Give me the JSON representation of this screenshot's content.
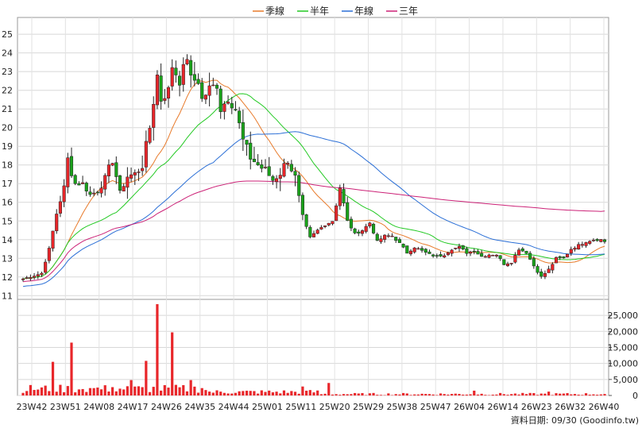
{
  "chart_data": {
    "type": "candlestick",
    "legend": [
      {
        "name": "季線",
        "color": "#e87a2a"
      },
      {
        "name": "半年",
        "color": "#22c922"
      },
      {
        "name": "年線",
        "color": "#2b6fd6"
      },
      {
        "name": "三年",
        "color": "#cc2277"
      }
    ],
    "price_axis": {
      "min": 10.8,
      "max": 25.9,
      "ticks": [
        11,
        12,
        13,
        14,
        15,
        16,
        17,
        18,
        19,
        20,
        21,
        22,
        23,
        24,
        25
      ]
    },
    "volume_axis": {
      "min": 0,
      "max": 29000,
      "ticks": [
        "0",
        "5,000",
        "10,000",
        "15,000",
        "20,000",
        "25,000"
      ],
      "tick_values": [
        0,
        5000,
        10000,
        15000,
        20000,
        25000
      ]
    },
    "x_labels": [
      "23W42",
      "23W51",
      "24W08",
      "24W17",
      "24W26",
      "24W35",
      "24W44",
      "25W01",
      "25W11",
      "25W20",
      "25W29",
      "25W38",
      "25W47",
      "26W04",
      "26W14",
      "26W23",
      "26W32",
      "26W40"
    ],
    "footer": "資料日期: 09/30 (Goodinfo.tw)",
    "up_color": "#e8262a",
    "down_color": "#1aa31a",
    "close_path": [
      [
        0,
        11.9
      ],
      [
        5,
        12.2
      ],
      [
        7,
        13.5
      ],
      [
        9,
        15.4
      ],
      [
        11,
        16.8
      ],
      [
        12,
        18.3
      ],
      [
        14,
        17.0
      ],
      [
        16,
        17.0
      ],
      [
        18,
        16.4
      ],
      [
        20,
        16.6
      ],
      [
        22,
        17.2
      ],
      [
        24,
        18.3
      ],
      [
        26,
        16.5
      ],
      [
        28,
        17.4
      ],
      [
        30,
        17.5
      ],
      [
        32,
        18.0
      ],
      [
        34,
        20.0
      ],
      [
        36,
        22.8
      ],
      [
        37,
        21.5
      ],
      [
        39,
        22.0
      ],
      [
        40,
        23.3
      ],
      [
        42,
        22.5
      ],
      [
        44,
        23.8
      ],
      [
        45,
        22.6
      ],
      [
        47,
        22.5
      ],
      [
        48,
        21.5
      ],
      [
        50,
        22.1
      ],
      [
        52,
        22.3
      ],
      [
        53,
        21.0
      ],
      [
        55,
        21.6
      ],
      [
        57,
        21.0
      ],
      [
        59,
        19.3
      ],
      [
        61,
        18.4
      ],
      [
        63,
        18.0
      ],
      [
        65,
        17.7
      ],
      [
        67,
        17.2
      ],
      [
        69,
        17.6
      ],
      [
        71,
        18.3
      ],
      [
        73,
        17.3
      ],
      [
        75,
        15.2
      ],
      [
        77,
        14.1
      ],
      [
        79,
        14.5
      ],
      [
        81,
        14.8
      ],
      [
        83,
        15.0
      ],
      [
        85,
        16.8
      ],
      [
        87,
        15.0
      ],
      [
        89,
        14.3
      ],
      [
        91,
        14.5
      ],
      [
        93,
        14.9
      ],
      [
        95,
        13.9
      ],
      [
        97,
        14.2
      ],
      [
        99,
        14.2
      ],
      [
        101,
        13.8
      ],
      [
        103,
        13.3
      ],
      [
        105,
        13.6
      ],
      [
        107,
        13.4
      ],
      [
        109,
        13.2
      ],
      [
        111,
        13.1
      ],
      [
        113,
        13.2
      ],
      [
        115,
        13.5
      ],
      [
        117,
        13.6
      ],
      [
        119,
        13.3
      ],
      [
        121,
        13.4
      ],
      [
        123,
        13.1
      ],
      [
        125,
        13.2
      ],
      [
        127,
        13.2
      ],
      [
        129,
        12.7
      ],
      [
        131,
        12.8
      ],
      [
        133,
        13.5
      ],
      [
        135,
        13.3
      ],
      [
        137,
        12.6
      ],
      [
        139,
        12.0
      ],
      [
        141,
        12.4
      ],
      [
        143,
        13.0
      ],
      [
        145,
        13.0
      ],
      [
        147,
        13.5
      ],
      [
        149,
        13.7
      ],
      [
        151,
        13.9
      ],
      [
        153,
        14.0
      ],
      [
        155,
        14.0
      ],
      [
        157,
        13.8
      ]
    ],
    "vol_spikes": [
      [
        8,
        10500
      ],
      [
        13,
        16500
      ],
      [
        16,
        2000
      ],
      [
        19,
        2300
      ],
      [
        24,
        2600
      ],
      [
        29,
        4800
      ],
      [
        33,
        10800
      ],
      [
        36,
        28500
      ],
      [
        40,
        19700
      ],
      [
        45,
        4800
      ],
      [
        48,
        2300
      ],
      [
        75,
        2800
      ],
      [
        82,
        3900
      ],
      [
        121,
        1500
      ],
      [
        141,
        1200
      ]
    ],
    "weeks": 157
  }
}
